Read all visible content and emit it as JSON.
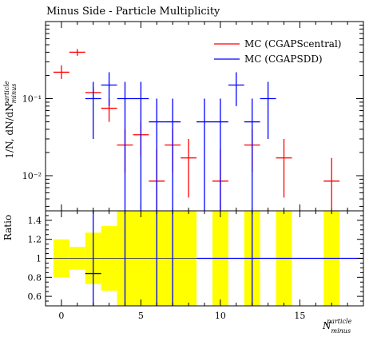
{
  "chart_data": {
    "type": "scatter",
    "title": "Minus Side - Particle Multiplicity",
    "xlabel": "N_minus^particle",
    "xlabel_main": "N",
    "xlabel_sup": "particle",
    "xlabel_sub": "minus",
    "xlim": [
      -1,
      19
    ],
    "x_ticks": [
      0,
      5,
      10,
      15
    ],
    "x_tick_labels": [
      "0",
      "5",
      "10",
      "15"
    ],
    "main": {
      "ylabel": "1/N, dN/dN_minus^particle",
      "ylabel_main": "1/N, dN/dN",
      "ylabel_sup": "particle",
      "ylabel_sub": "minus",
      "yscale": "log",
      "ylim": [
        0.0035,
        1.0
      ],
      "y_ticks": [
        0.01,
        0.1
      ],
      "y_tick_labels": [
        "10⁻²",
        "10⁻¹"
      ],
      "series": [
        {
          "name": "MC (CGAPScentral)",
          "color": "#ff0000",
          "points": [
            {
              "x": 0,
              "y": 0.22,
              "ylo": 0.18,
              "yhi": 0.27
            },
            {
              "x": 1,
              "y": 0.4,
              "ylo": 0.36,
              "yhi": 0.44
            },
            {
              "x": 2,
              "y": 0.12,
              "ylo": 0.1,
              "yhi": 0.14
            },
            {
              "x": 3,
              "y": 0.075,
              "ylo": 0.05,
              "yhi": 0.1
            },
            {
              "x": 4,
              "y": 0.025,
              "ylo": 0.011,
              "yhi": 0.04
            },
            {
              "x": 5,
              "y": 0.034,
              "ylo": 0.018,
              "yhi": 0.05
            },
            {
              "x": 6,
              "y": 0.0085,
              "ylo": 0.0035,
              "yhi": 0.022
            },
            {
              "x": 7,
              "y": 0.025,
              "ylo": 0.011,
              "yhi": 0.04
            },
            {
              "x": 8,
              "y": 0.017,
              "ylo": 0.0052,
              "yhi": 0.03
            },
            {
              "x": 10,
              "y": 0.0085,
              "ylo": 0.0035,
              "yhi": 0.022
            },
            {
              "x": 12,
              "y": 0.025,
              "ylo": 0.011,
              "yhi": 0.04
            },
            {
              "x": 14,
              "y": 0.017,
              "ylo": 0.0052,
              "yhi": 0.03
            },
            {
              "x": 17,
              "y": 0.0085,
              "ylo": 0.0035,
              "yhi": 0.017
            }
          ]
        },
        {
          "name": "MC (CGAPSDD)",
          "color": "#0000ff",
          "points": [
            {
              "x": 2,
              "y": 0.1,
              "ylo": 0.03,
              "yhi": 0.165
            },
            {
              "x": 3,
              "y": 0.15,
              "ylo": 0.08,
              "yhi": 0.22
            },
            {
              "x": 4,
              "y": 0.1,
              "ylo": 0.0035,
              "yhi": 0.165
            },
            {
              "x": 5,
              "y": 0.1,
              "ylo": 0.0035,
              "yhi": 0.165
            },
            {
              "x": 6,
              "y": 0.05,
              "ylo": 0.0035,
              "yhi": 0.1
            },
            {
              "x": 7,
              "y": 0.05,
              "ylo": 0.0035,
              "yhi": 0.1
            },
            {
              "x": 9,
              "y": 0.05,
              "ylo": 0.0035,
              "yhi": 0.1
            },
            {
              "x": 10,
              "y": 0.05,
              "ylo": 0.0035,
              "yhi": 0.1
            },
            {
              "x": 11,
              "y": 0.15,
              "ylo": 0.08,
              "yhi": 0.22
            },
            {
              "x": 12,
              "y": 0.05,
              "ylo": 0.0035,
              "yhi": 0.1
            },
            {
              "x": 13,
              "y": 0.1,
              "ylo": 0.03,
              "yhi": 0.165
            }
          ]
        }
      ]
    },
    "ratio": {
      "ylabel": "Ratio",
      "ylim": [
        0.5,
        1.5
      ],
      "y_ticks": [
        0.6,
        0.8,
        1.0,
        1.2,
        1.4
      ],
      "y_tick_labels": [
        "0.6",
        "0.8",
        "1",
        "1.2",
        "1.4"
      ],
      "reference_line": 1.0,
      "band_color": "#ffff00",
      "band": [
        {
          "x0": -0.5,
          "x1": 0.5,
          "lo": 0.8,
          "hi": 1.2
        },
        {
          "x0": 0.5,
          "x1": 1.5,
          "lo": 0.88,
          "hi": 1.12
        },
        {
          "x0": 1.5,
          "x1": 2.5,
          "lo": 0.73,
          "hi": 1.27
        },
        {
          "x0": 2.5,
          "x1": 3.5,
          "lo": 0.66,
          "hi": 1.34
        },
        {
          "x0": 3.5,
          "x1": 8.5,
          "lo": 0.5,
          "hi": 1.5
        },
        {
          "x0": 9.5,
          "x1": 10.5,
          "lo": 0.5,
          "hi": 1.5
        },
        {
          "x0": 11.5,
          "x1": 12.5,
          "lo": 0.5,
          "hi": 1.5
        },
        {
          "x0": 13.5,
          "x1": 14.5,
          "lo": 0.5,
          "hi": 1.5
        },
        {
          "x0": 16.5,
          "x1": 17.5,
          "lo": 0.5,
          "hi": 1.5
        }
      ],
      "series": [
        {
          "name": "MC (CGAPSDD)",
          "color": "#0000ff",
          "points": [
            {
              "x": 2,
              "y": 0.84,
              "ylo": 0.5,
              "yhi": 1.5
            },
            {
              "x": 4,
              "y": 1.5,
              "ylo": 0.5,
              "yhi": 1.5
            },
            {
              "x": 6,
              "y": 1.5,
              "ylo": 0.5,
              "yhi": 1.5
            },
            {
              "x": 7,
              "y": 1.5,
              "ylo": 0.5,
              "yhi": 1.5
            },
            {
              "x": 12,
              "y": 1.5,
              "ylo": 0.5,
              "yhi": 1.5
            }
          ],
          "flat_line": {
            "x0": 8.5,
            "x1": 19,
            "y": 1.0
          }
        }
      ]
    },
    "legend_position": "top-right",
    "grid": false
  }
}
